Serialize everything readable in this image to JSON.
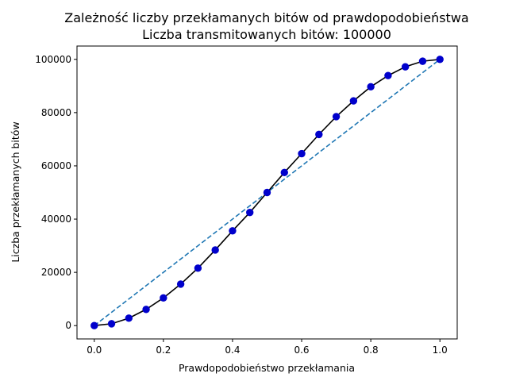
{
  "chart_data": {
    "type": "line",
    "title": "Zależność liczby przekłamanych bitów od prawdopodobieństwa",
    "subtitle": "Liczba transmitowanych bitów: 100000",
    "xlabel": "Prawdopodobieństwo przekłamania",
    "ylabel": "Liczba przekłamanych bitów",
    "xlim": [
      -0.05,
      1.05
    ],
    "ylim": [
      -5000,
      105000
    ],
    "xticks": [
      "0.0",
      "0.2",
      "0.4",
      "0.6",
      "0.8",
      "1.0"
    ],
    "yticks": [
      "0",
      "20000",
      "40000",
      "60000",
      "80000",
      "100000"
    ],
    "grid": false,
    "series": [
      {
        "style": "solid-black-with-blue-markers",
        "color": "#000000",
        "marker_color": "#0000cc",
        "x": [
          0.0,
          0.05,
          0.1,
          0.15,
          0.2,
          0.25,
          0.3,
          0.35,
          0.4,
          0.45,
          0.5,
          0.55,
          0.6,
          0.65,
          0.7,
          0.75,
          0.8,
          0.85,
          0.9,
          0.95,
          1.0
        ],
        "values": [
          0,
          700,
          2800,
          6100,
          10400,
          15600,
          21600,
          28400,
          35600,
          42500,
          50000,
          57500,
          64600,
          71800,
          78500,
          84400,
          89700,
          93900,
          97200,
          99300,
          100000
        ]
      },
      {
        "style": "dashed",
        "color": "#1f77b4",
        "x": [
          0.0,
          1.0
        ],
        "values": [
          0,
          100000
        ]
      }
    ]
  }
}
